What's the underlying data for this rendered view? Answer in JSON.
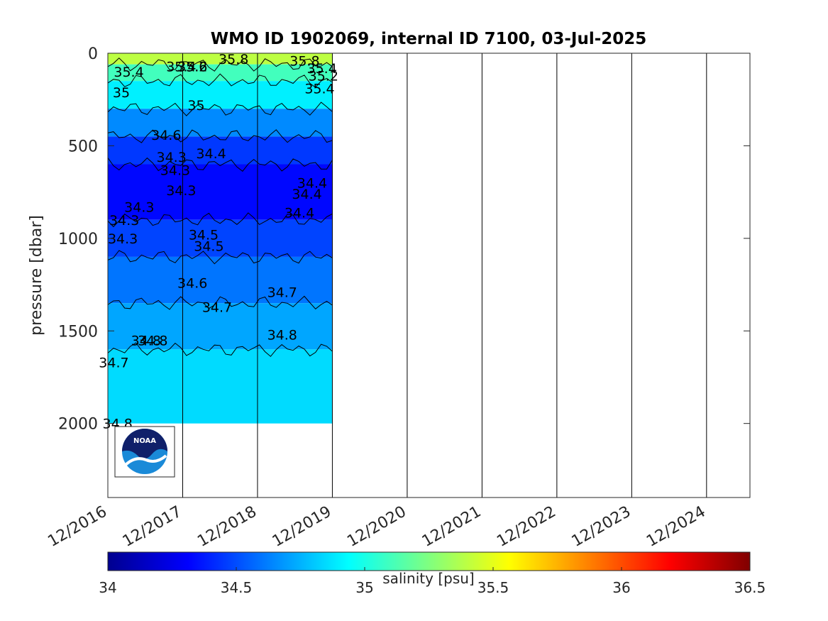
{
  "chart_data": {
    "type": "heatmap",
    "title": "WMO ID 1902069, internal ID 7100, 03-Jul-2025",
    "ylabel": "pressure [dbar]",
    "xlabel": "",
    "y_reversed": true,
    "ylim": [
      0,
      2400
    ],
    "y_ticks": [
      0,
      500,
      1000,
      1500,
      2000
    ],
    "x_range_years": [
      2016.92,
      2025.5
    ],
    "x_ticks": [
      {
        "label": "12/2016",
        "year": 2016.92
      },
      {
        "label": "12/2017",
        "year": 2017.92
      },
      {
        "label": "12/2018",
        "year": 2018.92
      },
      {
        "label": "12/2019",
        "year": 2019.92
      },
      {
        "label": "12/2020",
        "year": 2020.92
      },
      {
        "label": "12/2021",
        "year": 2021.92
      },
      {
        "label": "12/2022",
        "year": 2022.92
      },
      {
        "label": "12/2023",
        "year": 2023.92
      },
      {
        "label": "12/2024",
        "year": 2024.92
      }
    ],
    "data_extent_years": [
      2016.92,
      2019.92
    ],
    "max_profile_pressure": 2000,
    "colormap": "jet",
    "colorbar": {
      "label": "salinity [psu]",
      "range": [
        34,
        36.5
      ],
      "ticks": [
        "34",
        "34.5",
        "35",
        "35.5",
        "36",
        "36.5"
      ]
    },
    "contour_levels": [
      34.3,
      34.4,
      34.5,
      34.6,
      34.7,
      34.8,
      35,
      35.2,
      35.4,
      35.6,
      35.8
    ],
    "salinity_bands": [
      {
        "p_top": 0,
        "p_bottom": 60,
        "salinity": 35.4
      },
      {
        "p_top": 60,
        "p_bottom": 150,
        "salinity": 35.1
      },
      {
        "p_top": 150,
        "p_bottom": 300,
        "salinity": 34.9
      },
      {
        "p_top": 300,
        "p_bottom": 450,
        "salinity": 34.65
      },
      {
        "p_top": 450,
        "p_bottom": 600,
        "salinity": 34.45
      },
      {
        "p_top": 600,
        "p_bottom": 900,
        "salinity": 34.33
      },
      {
        "p_top": 900,
        "p_bottom": 1100,
        "salinity": 34.48
      },
      {
        "p_top": 1100,
        "p_bottom": 1350,
        "salinity": 34.6
      },
      {
        "p_top": 1350,
        "p_bottom": 1600,
        "salinity": 34.72
      },
      {
        "p_top": 1600,
        "p_bottom": 2000,
        "salinity": 34.85
      }
    ],
    "contour_labels": [
      {
        "text": "34.3",
        "year": 2017.34,
        "p": 830
      },
      {
        "text": "34.3",
        "year": 2017.14,
        "p": 900
      },
      {
        "text": "34.3",
        "year": 2017.12,
        "p": 1000
      },
      {
        "text": "34.3",
        "year": 2017.77,
        "p": 560
      },
      {
        "text": "34.3",
        "year": 2017.82,
        "p": 630
      },
      {
        "text": "34.3",
        "year": 2017.9,
        "p": 740
      },
      {
        "text": "34.4",
        "year": 2018.3,
        "p": 540
      },
      {
        "text": "34.4",
        "year": 2019.65,
        "p": 700
      },
      {
        "text": "34.4",
        "year": 2019.58,
        "p": 760
      },
      {
        "text": "34.4",
        "year": 2019.48,
        "p": 860
      },
      {
        "text": "34.5",
        "year": 2018.2,
        "p": 980
      },
      {
        "text": "34.5",
        "year": 2018.27,
        "p": 1040
      },
      {
        "text": "34.6",
        "year": 2017.7,
        "p": 440
      },
      {
        "text": "34.6",
        "year": 2018.05,
        "p": 1240
      },
      {
        "text": "34.7",
        "year": 2018.38,
        "p": 1370
      },
      {
        "text": "34.7",
        "year": 2019.25,
        "p": 1290
      },
      {
        "text": "34.7",
        "year": 2017.0,
        "p": 1670
      },
      {
        "text": "34.8",
        "year": 2017.43,
        "p": 1550
      },
      {
        "text": "34.8",
        "year": 2017.52,
        "p": 1550
      },
      {
        "text": "34.8",
        "year": 2019.25,
        "p": 1520
      },
      {
        "text": "34.8",
        "year": 2017.05,
        "p": 2000
      },
      {
        "text": "35",
        "year": 2017.1,
        "p": 210
      },
      {
        "text": "35",
        "year": 2018.1,
        "p": 280
      },
      {
        "text": "35.4",
        "year": 2017.2,
        "p": 100
      },
      {
        "text": "35.4",
        "year": 2019.75,
        "p": 190
      },
      {
        "text": "35.4",
        "year": 2019.78,
        "p": 80
      },
      {
        "text": "35.2",
        "year": 2019.8,
        "p": 120
      },
      {
        "text": "35.6",
        "year": 2018.05,
        "p": 70
      },
      {
        "text": "35.8",
        "year": 2018.6,
        "p": 30
      },
      {
        "text": "35.8",
        "year": 2019.55,
        "p": 40
      },
      {
        "text": "35.2",
        "year": 2018.05,
        "p": 70
      },
      {
        "text": "35.4",
        "year": 2017.9,
        "p": 70
      }
    ]
  },
  "logo": {
    "text": "NOAA"
  }
}
